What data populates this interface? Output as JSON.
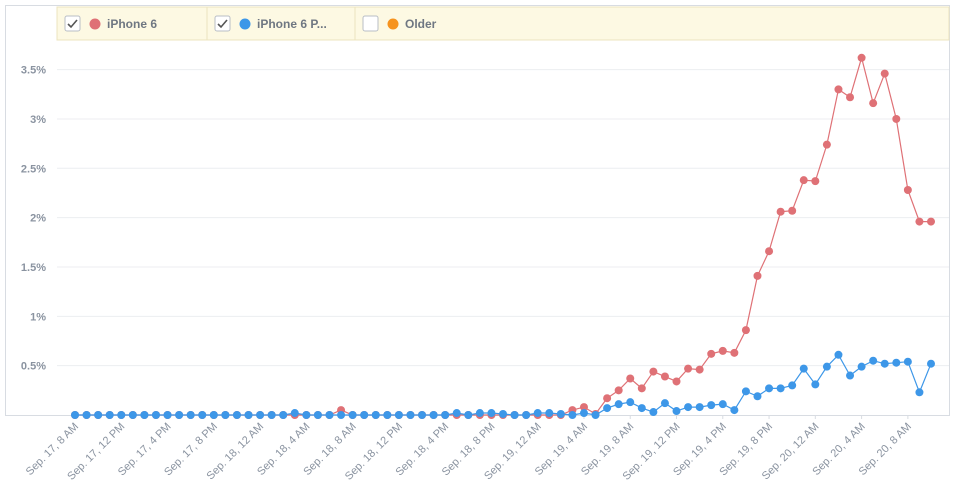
{
  "chart_data": {
    "type": "line",
    "categories": [
      "Sep. 17, 8 AM",
      null,
      null,
      null,
      "Sep. 17, 12 PM",
      null,
      null,
      null,
      "Sep. 17, 4 PM",
      null,
      null,
      null,
      "Sep. 17, 8 PM",
      null,
      null,
      null,
      "Sep. 18, 12 AM",
      null,
      null,
      null,
      "Sep. 18, 4 AM",
      null,
      null,
      null,
      "Sep. 18, 8 AM",
      null,
      null,
      null,
      "Sep. 18, 12 PM",
      null,
      null,
      null,
      "Sep. 18, 4 PM",
      null,
      null,
      null,
      "Sep. 18, 8 PM",
      null,
      null,
      null,
      "Sep. 19, 12 AM",
      null,
      null,
      null,
      "Sep. 19, 4 AM",
      null,
      null,
      null,
      "Sep. 19, 8 AM",
      null,
      null,
      null,
      "Sep. 19, 12 PM",
      null,
      null,
      null,
      "Sep. 19, 4 PM",
      null,
      null,
      null,
      "Sep. 19, 8 PM",
      null,
      null,
      null,
      "Sep. 20, 12 AM",
      null,
      null,
      null,
      "Sep. 20, 4 AM",
      null,
      null,
      null,
      "Sep. 20, 8 AM",
      null,
      null
    ],
    "series": [
      {
        "name": "iPhone 6",
        "color": "#df7176",
        "checked": true,
        "values": [
          0,
          0,
          0,
          0,
          0,
          0,
          0,
          0,
          0,
          0,
          0,
          0,
          0,
          0,
          0,
          0,
          0,
          0,
          0,
          0,
          0,
          0,
          0,
          0.05,
          0,
          0,
          0,
          0,
          0,
          0,
          0,
          0,
          0,
          0,
          0,
          0,
          0,
          0,
          0,
          0,
          0,
          0,
          0,
          0.05,
          0.08,
          0.01,
          0.17,
          0.25,
          0.37,
          0.27,
          0.44,
          0.39,
          0.34,
          0.47,
          0.46,
          0.62,
          0.65,
          0.63,
          0.86,
          1.41,
          1.66,
          2.06,
          2.07,
          2.38,
          2.37,
          2.74,
          3.3,
          3.22,
          3.62,
          3.16,
          3.46,
          3.0,
          2.28,
          1.96,
          1.96
        ]
      },
      {
        "name": "iPhone 6 P...",
        "color": "#3d97e8",
        "checked": true,
        "values": [
          0,
          0,
          0,
          0,
          0,
          0,
          0,
          0,
          0,
          0,
          0,
          0,
          0,
          0,
          0,
          0,
          0,
          0,
          0,
          0.02,
          0,
          0,
          0,
          0,
          0,
          0,
          0,
          0,
          0,
          0,
          0,
          0,
          0,
          0.02,
          0,
          0.02,
          0.02,
          0.01,
          0,
          0,
          0.02,
          0.02,
          0.01,
          0,
          0.02,
          0,
          0.07,
          0.11,
          0.13,
          0.07,
          0.03,
          0.12,
          0.04,
          0.08,
          0.08,
          0.1,
          0.11,
          0.05,
          0.24,
          0.19,
          0.27,
          0.27,
          0.3,
          0.47,
          0.31,
          0.49,
          0.61,
          0.4,
          0.49,
          0.55,
          0.52,
          0.53,
          0.54,
          0.23,
          0.52
        ]
      },
      {
        "name": "Older",
        "color": "#f6931e",
        "checked": false
      }
    ],
    "ylim": [
      0,
      3.78
    ],
    "yticks": [
      {
        "value": 0.5,
        "label": "0.5%"
      },
      {
        "value": 1,
        "label": "1%"
      },
      {
        "value": 1.5,
        "label": "1.5%"
      },
      {
        "value": 2,
        "label": "2%"
      },
      {
        "value": 2.5,
        "label": "2.5%"
      },
      {
        "value": 3,
        "label": "3%"
      },
      {
        "value": 3.5,
        "label": "3.5%"
      }
    ],
    "grid": true
  }
}
